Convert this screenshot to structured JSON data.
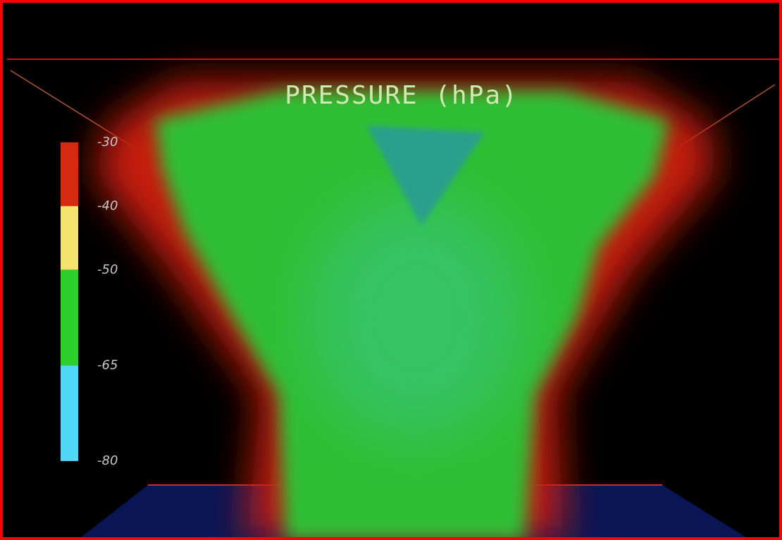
{
  "title": "PRESSURE (hPa)",
  "colorbar": {
    "lim": [
      -80,
      -30
    ],
    "ticks": [
      -30,
      -40,
      -50,
      -65,
      -80
    ],
    "colors": [
      "#d42a10",
      "#f4e46c",
      "#2fcf2a",
      "#52d8f7"
    ]
  }
}
